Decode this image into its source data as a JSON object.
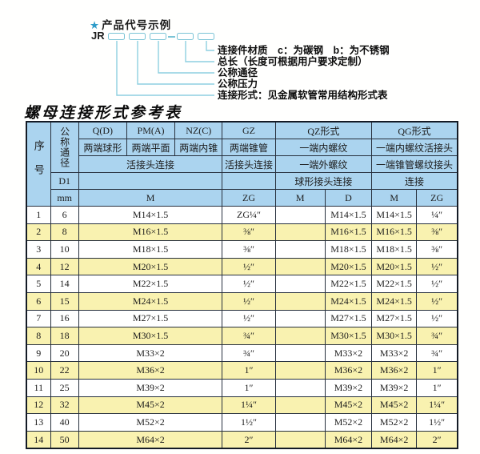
{
  "diagram": {
    "star_icon": "★",
    "title": "产品代号示例",
    "code_prefix": "JR",
    "labels": [
      "连接件材质　c：为碳钢　b：为不锈钢",
      "总长（长度可根据用户要求定制）",
      "公称通径",
      "公称压力",
      "连接形式：见金属软管常用结构形式表"
    ]
  },
  "table": {
    "title": "螺母连接形式参考表",
    "header": {
      "seq": "序号",
      "dn": "公称通径",
      "d1": "D1",
      "mm": "mm",
      "forms": [
        "Q(D)",
        "PM(A)",
        "NZ(C)",
        "GZ",
        "QZ形式",
        "QG形式"
      ],
      "row2": [
        "两端球形",
        "两端平面",
        "两端内锥",
        "两端锥管",
        "一端内螺纹",
        "一端内螺纹活接头"
      ],
      "row3": [
        "活接头连接",
        "活接头连接",
        "一端外螺纹",
        "一端锥管螺纹接头"
      ],
      "row4": [
        "球形接头连接",
        "连接"
      ],
      "row5": [
        "M",
        "ZG",
        "M",
        "D",
        "M",
        "ZG"
      ]
    },
    "rows": [
      {
        "seq": "1",
        "dn": "6",
        "m": "M14×1.5",
        "zg": "ZG¼″",
        "qz_m": "",
        "qz_d": "M14×1.5",
        "qg_m": "M14×1.5",
        "qg_zg": "¼″"
      },
      {
        "seq": "2",
        "dn": "8",
        "m": "M16×1.5",
        "zg": "⅜″",
        "qz_m": "",
        "qz_d": "M16×1.5",
        "qg_m": "M16×1.5",
        "qg_zg": "⅜″"
      },
      {
        "seq": "3",
        "dn": "10",
        "m": "M18×1.5",
        "zg": "⅜″",
        "qz_m": "",
        "qz_d": "M18×1.5",
        "qg_m": "M18×1.5",
        "qg_zg": "⅜″"
      },
      {
        "seq": "4",
        "dn": "12",
        "m": "M20×1.5",
        "zg": "½″",
        "qz_m": "",
        "qz_d": "M20×1.5",
        "qg_m": "M20×1.5",
        "qg_zg": "½″"
      },
      {
        "seq": "5",
        "dn": "14",
        "m": "M22×1.5",
        "zg": "½″",
        "qz_m": "",
        "qz_d": "M22×1.5",
        "qg_m": "M22×1.5",
        "qg_zg": "½″"
      },
      {
        "seq": "6",
        "dn": "15",
        "m": "M24×1.5",
        "zg": "½″",
        "qz_m": "",
        "qz_d": "M24×1.5",
        "qg_m": "M24×1.5",
        "qg_zg": "½″"
      },
      {
        "seq": "7",
        "dn": "16",
        "m": "M27×1.5",
        "zg": "½″",
        "qz_m": "",
        "qz_d": "M27×1.5",
        "qg_m": "M27×1.5",
        "qg_zg": "½″"
      },
      {
        "seq": "8",
        "dn": "18",
        "m": "M30×1.5",
        "zg": "¾″",
        "qz_m": "",
        "qz_d": "M30×1.5",
        "qg_m": "M30×1.5",
        "qg_zg": "¾″"
      },
      {
        "seq": "9",
        "dn": "20",
        "m": "M33×2",
        "zg": "¾″",
        "qz_m": "",
        "qz_d": "M33×2",
        "qg_m": "M33×2",
        "qg_zg": "¾″"
      },
      {
        "seq": "10",
        "dn": "22",
        "m": "M36×2",
        "zg": "1″",
        "qz_m": "",
        "qz_d": "M36×2",
        "qg_m": "M36×2",
        "qg_zg": "1″"
      },
      {
        "seq": "11",
        "dn": "25",
        "m": "M39×2",
        "zg": "1″",
        "qz_m": "",
        "qz_d": "M39×2",
        "qg_m": "M39×2",
        "qg_zg": "1″"
      },
      {
        "seq": "12",
        "dn": "32",
        "m": "M45×2",
        "zg": "1¼″",
        "qz_m": "",
        "qz_d": "M45×2",
        "qg_m": "M45×2",
        "qg_zg": "1¼″"
      },
      {
        "seq": "13",
        "dn": "40",
        "m": "M52×2",
        "zg": "1½″",
        "qz_m": "",
        "qz_d": "M52×2",
        "qg_m": "M52×2",
        "qg_zg": "1½″"
      },
      {
        "seq": "14",
        "dn": "50",
        "m": "M64×2",
        "zg": "2″",
        "qz_m": "",
        "qz_d": "M64×2",
        "qg_m": "M64×2",
        "qg_zg": "2″"
      }
    ]
  },
  "colors": {
    "header_bg": "#abd4ef",
    "row_alt_bg": "#f9f2b0",
    "table_border": "#27303e",
    "connector_line": "#8ecfe0",
    "code_box_border": "#7cc4d6",
    "star_blue": "#2e9cc9"
  }
}
